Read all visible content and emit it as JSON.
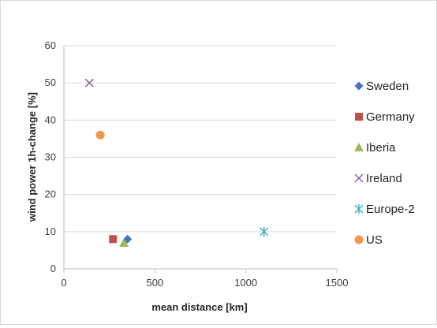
{
  "chart_data": {
    "type": "scatter",
    "title": "",
    "xlabel": "mean distance [km]",
    "ylabel": "wind  power  1h-change [%]",
    "xlim": [
      0,
      1500
    ],
    "ylim": [
      0,
      60
    ],
    "xticks": [
      0,
      500,
      1000,
      1500
    ],
    "yticks": [
      0,
      10,
      20,
      30,
      40,
      50,
      60
    ],
    "grid": "horizontal",
    "legend": "right",
    "series": [
      {
        "name": "Sweden",
        "marker": "diamond",
        "color": "#4472c4",
        "points": [
          [
            350,
            8
          ]
        ]
      },
      {
        "name": "Germany",
        "marker": "square",
        "color": "#c0504d",
        "points": [
          [
            270,
            8
          ]
        ]
      },
      {
        "name": "Iberia",
        "marker": "triangle",
        "color": "#9bbb59",
        "points": [
          [
            330,
            7
          ]
        ]
      },
      {
        "name": "Ireland",
        "marker": "x",
        "color": "#8064a2",
        "points": [
          [
            140,
            50
          ]
        ]
      },
      {
        "name": "Europe-2",
        "marker": "asterisk",
        "color": "#4bacc6",
        "points": [
          [
            1100,
            10
          ]
        ]
      },
      {
        "name": "US",
        "marker": "circle",
        "color": "#f79646",
        "points": [
          [
            200,
            36
          ]
        ]
      }
    ]
  }
}
